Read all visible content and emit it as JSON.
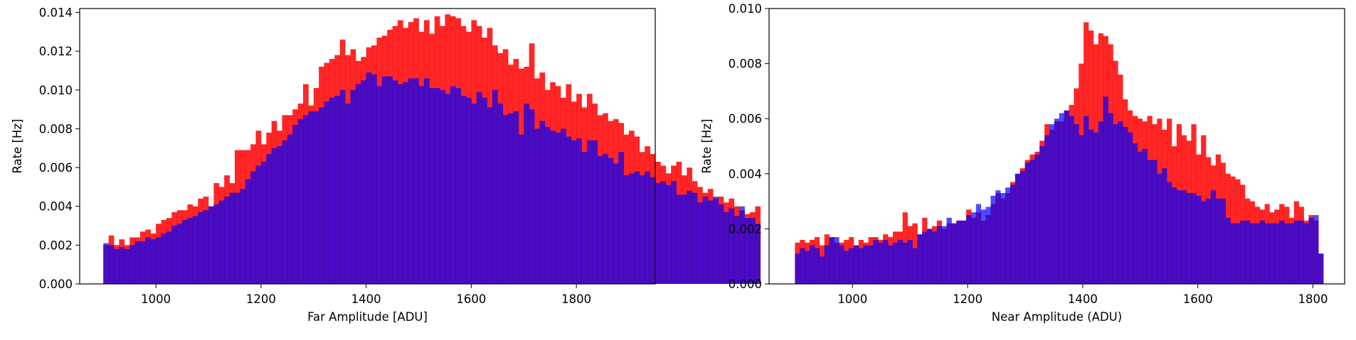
{
  "figure": {
    "colors": {
      "red_series": "#ff0000",
      "blue_series": "#0000ff",
      "overlap": "#4b0fd9"
    }
  },
  "chart_data": [
    {
      "type": "bar",
      "subtype": "overlaid-histogram",
      "xlabel": "Far Amplitude [ADU]",
      "ylabel": "Rate [Hz]",
      "xlim": [
        855,
        1950
      ],
      "ylim": [
        0,
        0.0142
      ],
      "x_ticks": [
        "1000",
        "1200",
        "1400",
        "1600",
        "1800"
      ],
      "x_tick_values": [
        1000,
        1200,
        1400,
        1600,
        1800
      ],
      "y_ticks": [
        "0.000",
        "0.002",
        "0.004",
        "0.006",
        "0.008",
        "0.010",
        "0.012",
        "0.014"
      ],
      "y_tick_values": [
        0,
        0.002,
        0.004,
        0.006,
        0.008,
        0.01,
        0.012,
        0.014
      ],
      "grid": false,
      "bin_start": 900,
      "bin_width": 10,
      "series": [
        {
          "color": "#ff0000",
          "opacity": 0.85,
          "values": [
            0.002,
            0.0025,
            0.002,
            0.0023,
            0.002,
            0.0024,
            0.0024,
            0.0027,
            0.0028,
            0.0026,
            0.0031,
            0.0033,
            0.0034,
            0.0037,
            0.0038,
            0.0038,
            0.0041,
            0.004,
            0.0044,
            0.0045,
            0.004,
            0.0052,
            0.005,
            0.0056,
            0.0052,
            0.0069,
            0.0069,
            0.0069,
            0.0072,
            0.0079,
            0.0072,
            0.0078,
            0.0084,
            0.0079,
            0.0087,
            0.0087,
            0.009,
            0.0093,
            0.0103,
            0.0092,
            0.0101,
            0.0112,
            0.0114,
            0.0116,
            0.0118,
            0.0126,
            0.0118,
            0.0121,
            0.0115,
            0.0117,
            0.0122,
            0.0123,
            0.0127,
            0.0128,
            0.0131,
            0.0133,
            0.0136,
            0.0132,
            0.0135,
            0.0137,
            0.013,
            0.0136,
            0.0129,
            0.0138,
            0.0133,
            0.0139,
            0.0138,
            0.0137,
            0.0133,
            0.013,
            0.0136,
            0.0133,
            0.0127,
            0.0132,
            0.0123,
            0.0119,
            0.0121,
            0.0113,
            0.0116,
            0.0111,
            0.0112,
            0.0124,
            0.0106,
            0.0109,
            0.01,
            0.0104,
            0.0102,
            0.0096,
            0.0103,
            0.0094,
            0.0098,
            0.0091,
            0.0098,
            0.0093,
            0.0087,
            0.0088,
            0.0084,
            0.0085,
            0.0083,
            0.0077,
            0.0079,
            0.0076,
            0.0068,
            0.0071,
            0.0067,
            0.0063,
            0.0061,
            0.0057,
            0.0061,
            0.0063,
            0.0056,
            0.006,
            0.0053,
            0.005,
            0.0047,
            0.0049,
            0.0044,
            0.0045,
            0.0042,
            0.0044,
            0.004,
            0.0038,
            0.0036,
            0.0037,
            0.004
          ]
        },
        {
          "color": "#0000ff",
          "opacity": 0.7,
          "values": [
            0.0021,
            0.002,
            0.0018,
            0.0019,
            0.0018,
            0.002,
            0.0022,
            0.0022,
            0.0024,
            0.0023,
            0.0024,
            0.0026,
            0.0027,
            0.003,
            0.0031,
            0.0033,
            0.0034,
            0.0035,
            0.0037,
            0.0038,
            0.004,
            0.0041,
            0.0043,
            0.0045,
            0.0047,
            0.0047,
            0.0049,
            0.0054,
            0.0058,
            0.0061,
            0.0063,
            0.0067,
            0.007,
            0.0071,
            0.0074,
            0.0077,
            0.0082,
            0.0085,
            0.0087,
            0.0089,
            0.0089,
            0.0091,
            0.0094,
            0.0096,
            0.0097,
            0.01,
            0.0093,
            0.01,
            0.0103,
            0.0105,
            0.0109,
            0.0108,
            0.0102,
            0.0107,
            0.0107,
            0.0105,
            0.0103,
            0.0104,
            0.0106,
            0.0106,
            0.0102,
            0.0106,
            0.0101,
            0.0101,
            0.01,
            0.0098,
            0.0102,
            0.0101,
            0.0097,
            0.0096,
            0.0093,
            0.0099,
            0.0096,
            0.0091,
            0.01,
            0.0093,
            0.0087,
            0.0088,
            0.0089,
            0.0077,
            0.0093,
            0.009,
            0.008,
            0.0084,
            0.0081,
            0.0079,
            0.0078,
            0.008,
            0.0076,
            0.0074,
            0.0075,
            0.0068,
            0.0074,
            0.0074,
            0.0066,
            0.0067,
            0.0065,
            0.0062,
            0.0068,
            0.0056,
            0.0057,
            0.0058,
            0.0056,
            0.0058,
            0.0055,
            0.0052,
            0.0053,
            0.0051,
            0.0053,
            0.0046,
            0.0046,
            0.0048,
            0.0047,
            0.0042,
            0.0045,
            0.0043,
            0.0045,
            0.0041,
            0.0037,
            0.0039,
            0.0035,
            0.004,
            0.0034,
            0.0034,
            0.0031
          ]
        }
      ]
    },
    {
      "type": "bar",
      "subtype": "overlaid-histogram",
      "xlabel": "Near Amplitude (ADU)",
      "ylabel": "Rate [Hz]",
      "xlim": [
        855,
        1855
      ],
      "ylim": [
        0,
        0.01
      ],
      "x_ticks": [
        "1000",
        "1200",
        "1400",
        "1600",
        "1800"
      ],
      "x_tick_values": [
        1000,
        1200,
        1400,
        1600,
        1800
      ],
      "y_ticks": [
        "0.000",
        "0.002",
        "0.004",
        "0.006",
        "0.008",
        "0.010"
      ],
      "y_tick_values": [
        0,
        0.002,
        0.004,
        0.006,
        0.008,
        0.01
      ],
      "grid": false,
      "bin_start": 900,
      "bin_width": 8.5,
      "series": [
        {
          "color": "#ff0000",
          "opacity": 0.85,
          "values": [
            0.0015,
            0.0016,
            0.0015,
            0.0016,
            0.0017,
            0.0014,
            0.0018,
            0.0017,
            0.0015,
            0.0015,
            0.0016,
            0.0017,
            0.0014,
            0.0016,
            0.0015,
            0.0017,
            0.0017,
            0.0016,
            0.0018,
            0.0017,
            0.0019,
            0.0019,
            0.0026,
            0.0021,
            0.0022,
            0.0018,
            0.0024,
            0.002,
            0.0021,
            0.0023,
            0.002,
            0.0022,
            0.0022,
            0.0023,
            0.0023,
            0.0027,
            0.0024,
            0.0026,
            0.0023,
            0.0025,
            0.0029,
            0.0033,
            0.0031,
            0.0033,
            0.0037,
            0.004,
            0.0042,
            0.0045,
            0.0047,
            0.0048,
            0.0052,
            0.0058,
            0.0056,
            0.0059,
            0.0059,
            0.0063,
            0.0065,
            0.0071,
            0.008,
            0.0095,
            0.0092,
            0.0087,
            0.0091,
            0.009,
            0.0087,
            0.0081,
            0.0076,
            0.0067,
            0.0063,
            0.0061,
            0.006,
            0.0059,
            0.0061,
            0.0058,
            0.006,
            0.0056,
            0.006,
            0.005,
            0.0058,
            0.0054,
            0.0052,
            0.0058,
            0.0047,
            0.0054,
            0.0046,
            0.0043,
            0.0047,
            0.0044,
            0.004,
            0.0039,
            0.0038,
            0.0036,
            0.0031,
            0.003,
            0.0028,
            0.0027,
            0.0029,
            0.0026,
            0.0027,
            0.0029,
            0.0028,
            0.0024,
            0.003,
            0.0028,
            0.0023,
            0.0025,
            0.0023,
            0.0011
          ]
        },
        {
          "color": "#0000ff",
          "opacity": 0.7,
          "values": [
            0.0011,
            0.0013,
            0.0012,
            0.0014,
            0.0013,
            0.001,
            0.0014,
            0.0017,
            0.0017,
            0.0014,
            0.0012,
            0.0013,
            0.0014,
            0.0013,
            0.0014,
            0.0014,
            0.0016,
            0.0015,
            0.0016,
            0.0014,
            0.0015,
            0.0016,
            0.0015,
            0.0016,
            0.0013,
            0.0018,
            0.0019,
            0.002,
            0.0019,
            0.0021,
            0.0021,
            0.0024,
            0.0022,
            0.0023,
            0.0023,
            0.0025,
            0.0026,
            0.0029,
            0.0027,
            0.0028,
            0.0032,
            0.0034,
            0.0033,
            0.0035,
            0.0036,
            0.004,
            0.0041,
            0.0044,
            0.0045,
            0.0047,
            0.005,
            0.0054,
            0.0058,
            0.006,
            0.0062,
            0.0063,
            0.0061,
            0.0058,
            0.0054,
            0.0061,
            0.0056,
            0.0055,
            0.0059,
            0.0068,
            0.0062,
            0.0058,
            0.0059,
            0.0057,
            0.0055,
            0.0051,
            0.0048,
            0.0049,
            0.0045,
            0.0045,
            0.004,
            0.0042,
            0.0037,
            0.0035,
            0.0034,
            0.0034,
            0.0033,
            0.0033,
            0.0032,
            0.003,
            0.0031,
            0.0034,
            0.0031,
            0.0031,
            0.0024,
            0.0022,
            0.0022,
            0.0023,
            0.0023,
            0.0022,
            0.0022,
            0.0023,
            0.0022,
            0.0022,
            0.0022,
            0.0023,
            0.0022,
            0.0022,
            0.0023,
            0.0023,
            0.0022,
            0.0024,
            0.0025,
            0.0011
          ]
        }
      ]
    }
  ]
}
